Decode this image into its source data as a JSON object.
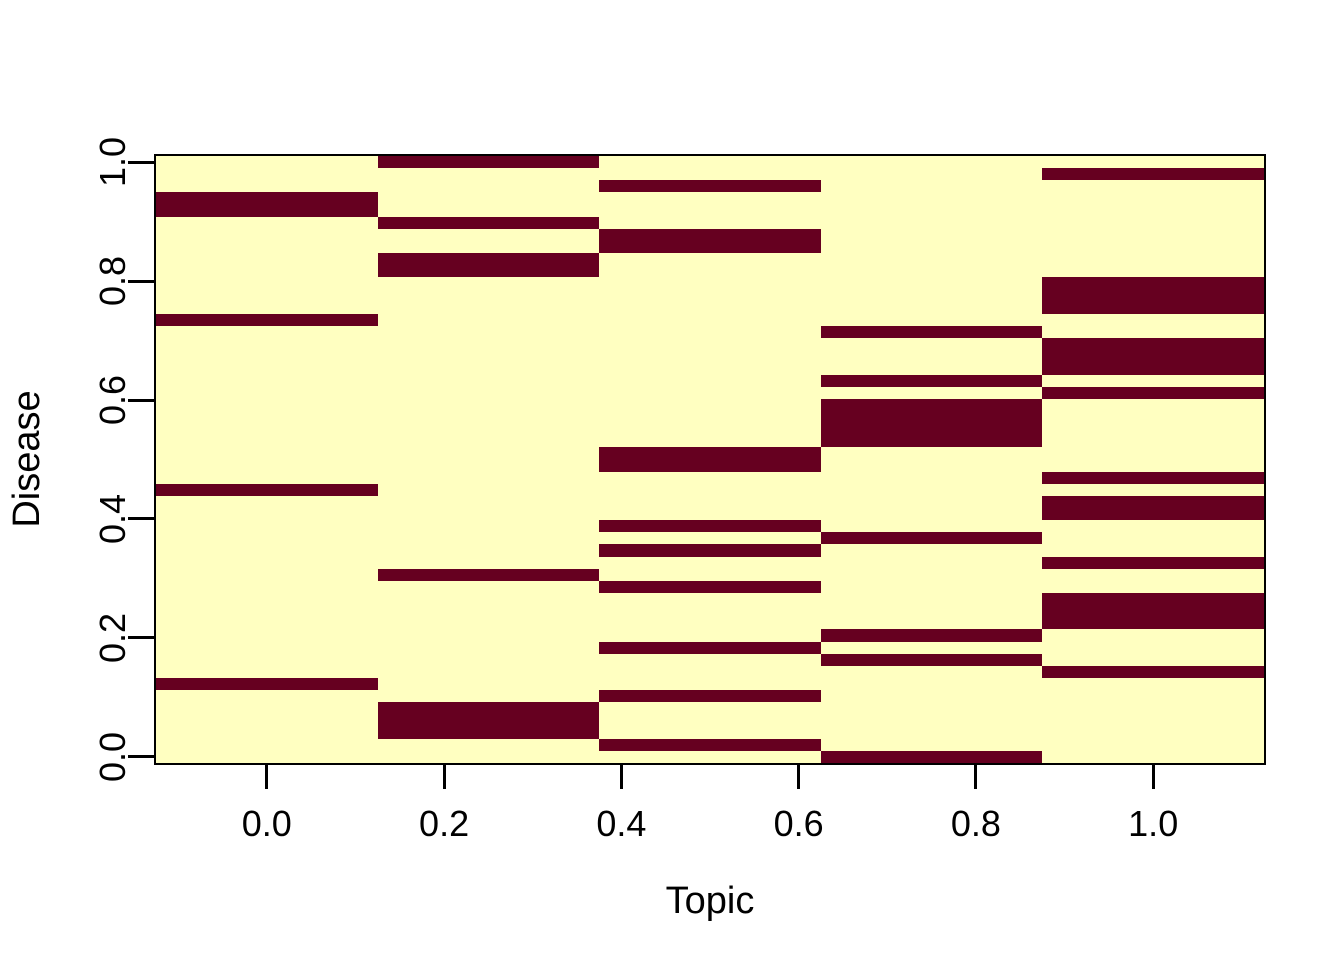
{
  "figure": {
    "background": "#ffffff",
    "border_color": "#000000"
  },
  "chart_data": {
    "type": "heatmap",
    "title": "",
    "xlabel": "Topic",
    "ylabel": "Disease",
    "x_tick_values": [
      0.0,
      0.2,
      0.4,
      0.6,
      0.8,
      1.0
    ],
    "x_tick_labels": [
      "0.0",
      "0.2",
      "0.4",
      "0.6",
      "0.8",
      "1.0"
    ],
    "y_tick_values": [
      0.0,
      0.2,
      0.4,
      0.6,
      0.8,
      1.0
    ],
    "y_tick_labels": [
      "0.0",
      "0.2",
      "0.4",
      "0.6",
      "0.8",
      "1.0"
    ],
    "n_cols": 5,
    "n_rows": 50,
    "col_centers": [
      0.0,
      0.25,
      0.5,
      0.75,
      1.0
    ],
    "x_range": [
      -0.125,
      1.125
    ],
    "y_range": [
      -0.0102,
      1.0102
    ],
    "grid": false,
    "legend": false,
    "colors": {
      "zero": "#FFFFC1",
      "one": "#660020"
    },
    "row_order": "top_to_bottom_disease_1_to_0",
    "matrix": [
      [
        0,
        1,
        0,
        0,
        0
      ],
      [
        0,
        0,
        0,
        0,
        1
      ],
      [
        0,
        0,
        1,
        0,
        0
      ],
      [
        1,
        0,
        0,
        0,
        0
      ],
      [
        1,
        0,
        0,
        0,
        0
      ],
      [
        0,
        1,
        0,
        0,
        0
      ],
      [
        0,
        0,
        1,
        0,
        0
      ],
      [
        0,
        0,
        1,
        0,
        0
      ],
      [
        0,
        1,
        0,
        0,
        0
      ],
      [
        0,
        1,
        0,
        0,
        0
      ],
      [
        0,
        0,
        0,
        0,
        1
      ],
      [
        0,
        0,
        0,
        0,
        1
      ],
      [
        0,
        0,
        0,
        0,
        1
      ],
      [
        1,
        0,
        0,
        0,
        0
      ],
      [
        0,
        0,
        0,
        1,
        0
      ],
      [
        0,
        0,
        0,
        0,
        1
      ],
      [
        0,
        0,
        0,
        0,
        1
      ],
      [
        0,
        0,
        0,
        0,
        1
      ],
      [
        0,
        0,
        0,
        1,
        0
      ],
      [
        0,
        0,
        0,
        0,
        1
      ],
      [
        0,
        0,
        0,
        1,
        0
      ],
      [
        0,
        0,
        0,
        1,
        0
      ],
      [
        0,
        0,
        0,
        1,
        0
      ],
      [
        0,
        0,
        0,
        1,
        0
      ],
      [
        0,
        0,
        1,
        0,
        0
      ],
      [
        0,
        0,
        1,
        0,
        0
      ],
      [
        0,
        0,
        0,
        0,
        1
      ],
      [
        1,
        0,
        0,
        0,
        0
      ],
      [
        0,
        0,
        0,
        0,
        1
      ],
      [
        0,
        0,
        0,
        0,
        1
      ],
      [
        0,
        0,
        1,
        0,
        0
      ],
      [
        0,
        0,
        0,
        1,
        0
      ],
      [
        0,
        0,
        1,
        0,
        0
      ],
      [
        0,
        0,
        0,
        0,
        1
      ],
      [
        0,
        1,
        0,
        0,
        0
      ],
      [
        0,
        0,
        1,
        0,
        0
      ],
      [
        0,
        0,
        0,
        0,
        1
      ],
      [
        0,
        0,
        0,
        0,
        1
      ],
      [
        0,
        0,
        0,
        0,
        1
      ],
      [
        0,
        0,
        0,
        1,
        0
      ],
      [
        0,
        0,
        1,
        0,
        0
      ],
      [
        0,
        0,
        0,
        1,
        0
      ],
      [
        0,
        0,
        0,
        0,
        1
      ],
      [
        1,
        0,
        0,
        0,
        0
      ],
      [
        0,
        0,
        1,
        0,
        0
      ],
      [
        0,
        1,
        0,
        0,
        0
      ],
      [
        0,
        1,
        0,
        0,
        0
      ],
      [
        0,
        1,
        0,
        0,
        0
      ],
      [
        0,
        0,
        1,
        0,
        0
      ],
      [
        0,
        0,
        0,
        1,
        0
      ]
    ]
  }
}
